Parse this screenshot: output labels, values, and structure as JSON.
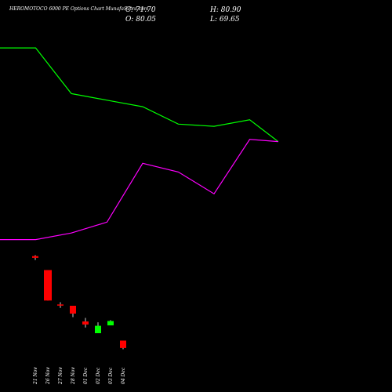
{
  "header": {
    "title": "HEROMOTOCO 6000  PE Options  Chart MunafaSutra.com",
    "close_text": "C: 71.70",
    "open_text": "O: 80.05",
    "high_text": "H: 80.90",
    "low_text": "L: 69.65"
  },
  "colors": {
    "background": "#000000",
    "up": "#00ff00",
    "down": "#ff0000",
    "line_upper": "#00ff00",
    "line_lower": "#ff00ff"
  },
  "chart_data": {
    "type": "candlestick",
    "categories": [
      "21 Nov",
      "26 Nov",
      "27 Nov",
      "28 Nov",
      "01 Dec",
      "02 Dec",
      "03 Dec",
      "04 Dec"
    ],
    "candles": [
      {
        "date": "21 Nov",
        "open": 312,
        "high": 314,
        "low": 303,
        "close": 308
      },
      {
        "date": "26 Nov",
        "open": 280,
        "high": 280,
        "low": 210,
        "close": 210
      },
      {
        "date": "27 Nov",
        "open": 201,
        "high": 206,
        "low": 193,
        "close": 200
      },
      {
        "date": "28 Nov",
        "open": 198,
        "high": 198,
        "low": 172,
        "close": 180
      },
      {
        "date": "01 Dec",
        "open": 162,
        "high": 170,
        "low": 148,
        "close": 155
      },
      {
        "date": "02 Dec",
        "open": 135,
        "high": 160,
        "low": 135,
        "close": 152
      },
      {
        "date": "03 Dec",
        "open": 153,
        "high": 165,
        "low": 153,
        "close": 163
      },
      {
        "date": "04 Dec",
        "open": 118,
        "high": 118,
        "low": 98,
        "close": 101
      }
    ],
    "series": [
      {
        "color": "#00ff00",
        "x": [
          0,
          1,
          2,
          3,
          4,
          5,
          6,
          7,
          7.8
        ],
        "values": [
          790,
          790,
          685,
          670,
          655,
          615,
          610,
          625,
          575
        ]
      },
      {
        "color": "#ff00ff",
        "x": [
          0,
          1,
          2,
          3,
          4,
          5,
          6,
          7,
          7.8
        ],
        "values": [
          350,
          350,
          365,
          390,
          525,
          505,
          455,
          580,
          575
        ]
      }
    ],
    "ylim": [
      0,
      900
    ],
    "grid": false
  }
}
